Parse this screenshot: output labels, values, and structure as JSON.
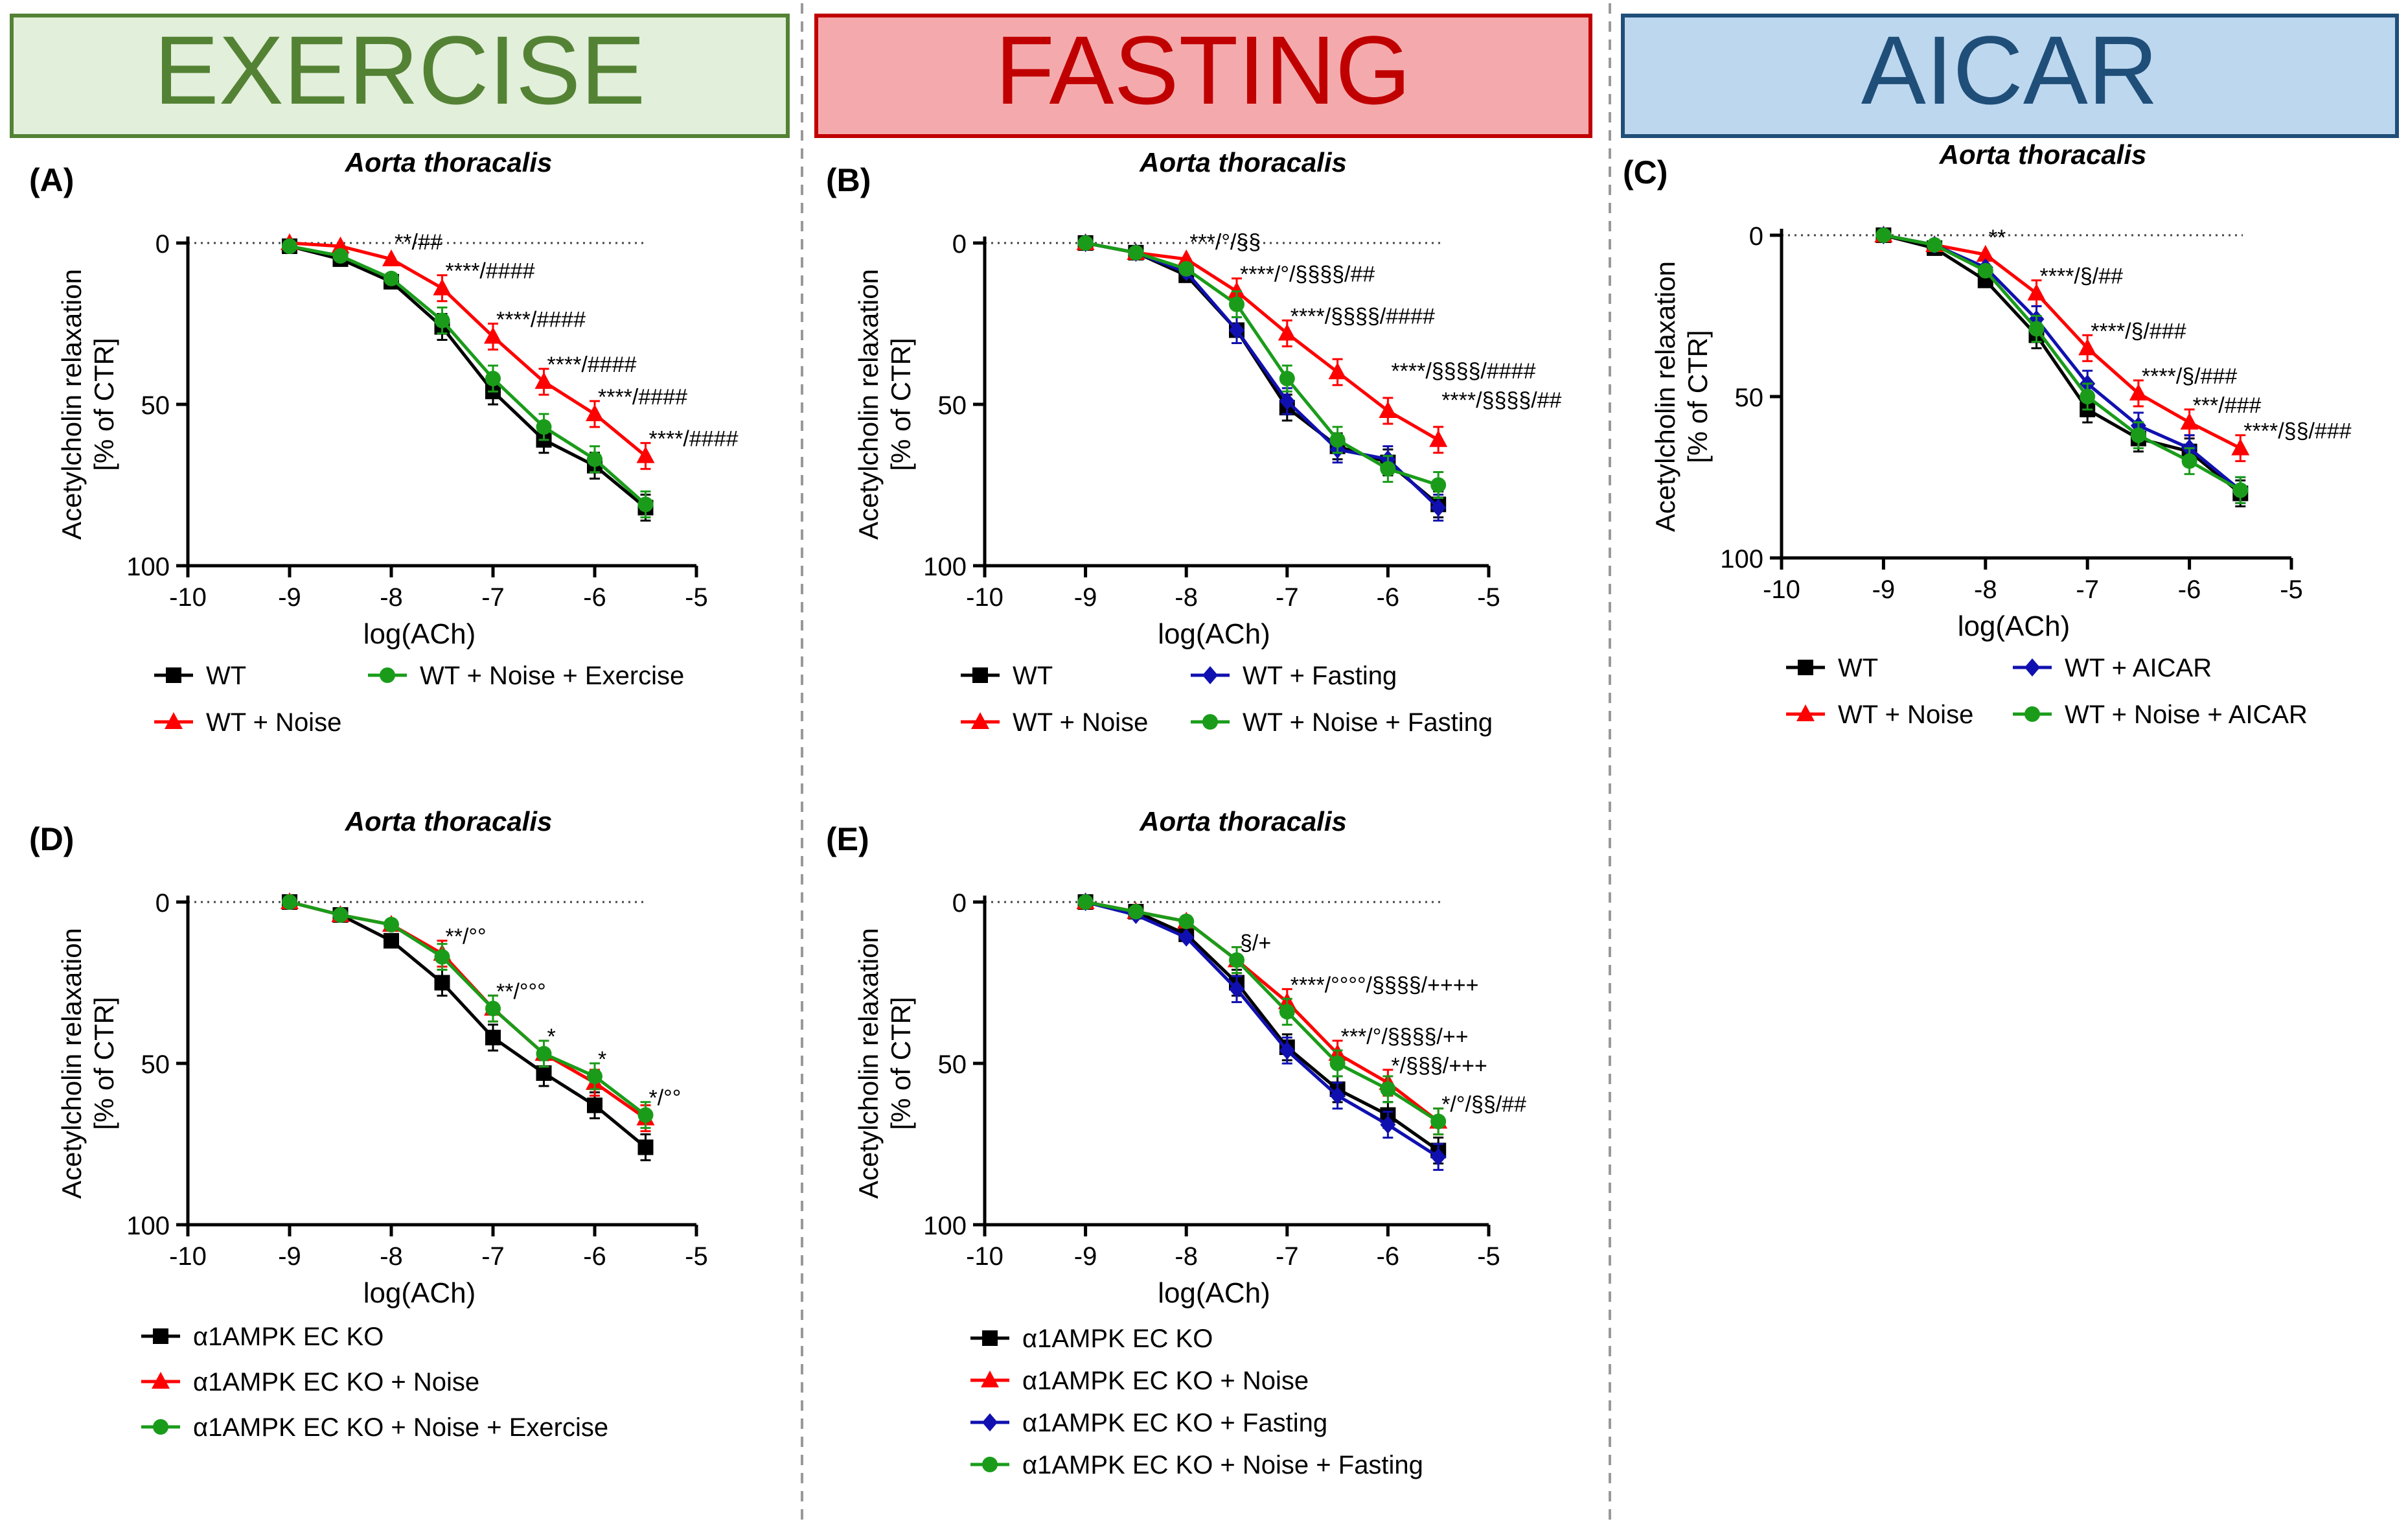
{
  "columns": [
    {
      "title": "EXERCISE",
      "fill": "#e2efda",
      "stroke": "#548235",
      "color": "#548235"
    },
    {
      "title": "FASTING",
      "fill": "#f4aaad",
      "stroke": "#c00000",
      "color": "#c00000"
    },
    {
      "title": "AICAR",
      "fill": "#bdd7ee",
      "stroke": "#1f4e79",
      "color": "#1f4e79"
    }
  ],
  "colors": {
    "black": "#000000",
    "red": "#ff0000",
    "green": "#1a9c1a",
    "blue": "#1010b0",
    "divider": "#999999"
  },
  "chart_data": [
    {
      "panel": "(A)",
      "type": "line",
      "title": "Aorta thoracalis",
      "xlabel": "log(ACh)",
      "ylabel": "Acetylcholin relaxation",
      "ylabel2": "[% of CTR]",
      "xlim": [
        -10,
        -5
      ],
      "ylim": [
        0,
        100
      ],
      "y_inverted": true,
      "xticks": [
        -10,
        -9,
        -8,
        -7,
        -6,
        -5
      ],
      "yticks": [
        0,
        50,
        100
      ],
      "x": [
        -9,
        -8.5,
        -8,
        -7.5,
        -7,
        -6.5,
        -6,
        -5.5
      ],
      "series": [
        {
          "name": "WT",
          "color": "#000000",
          "marker": "square",
          "values": [
            1,
            5,
            12,
            26,
            46,
            61,
            69,
            82
          ]
        },
        {
          "name": "WT + Noise",
          "color": "#ff0000",
          "marker": "triangle",
          "values": [
            0,
            1,
            5,
            14,
            29,
            43,
            53,
            66
          ]
        },
        {
          "name": "WT + Noise + Exercise",
          "color": "#1a9c1a",
          "marker": "circle",
          "values": [
            1,
            4,
            11,
            24,
            42,
            57,
            67,
            81
          ]
        }
      ],
      "annotations": [
        {
          "x": -8,
          "y": 5,
          "text": "**/##"
        },
        {
          "x": -7.5,
          "y": 14,
          "text": "****/####"
        },
        {
          "x": -7,
          "y": 29,
          "text": "****/####"
        },
        {
          "x": -6.5,
          "y": 43,
          "text": "****/####"
        },
        {
          "x": -6,
          "y": 53,
          "text": "****/####"
        },
        {
          "x": -5.5,
          "y": 66,
          "text": "****/####"
        }
      ],
      "legend": [
        [
          "WT",
          "WT + Noise + Exercise"
        ],
        [
          "WT + Noise"
        ]
      ]
    },
    {
      "panel": "(B)",
      "type": "line",
      "title": "Aorta thoracalis",
      "xlabel": "log(ACh)",
      "ylabel": "Acetylcholin relaxation",
      "ylabel2": "[% of CTR]",
      "xlim": [
        -10,
        -5
      ],
      "ylim": [
        0,
        100
      ],
      "y_inverted": true,
      "xticks": [
        -10,
        -9,
        -8,
        -7,
        -6,
        -5
      ],
      "yticks": [
        0,
        50,
        100
      ],
      "x": [
        -9,
        -8.5,
        -8,
        -7.5,
        -7,
        -6.5,
        -6,
        -5.5
      ],
      "series": [
        {
          "name": "WT",
          "color": "#000000",
          "marker": "square",
          "values": [
            0,
            3,
            10,
            27,
            51,
            63,
            68,
            81
          ]
        },
        {
          "name": "WT + Noise",
          "color": "#ff0000",
          "marker": "triangle",
          "values": [
            0,
            3,
            5,
            15,
            28,
            40,
            52,
            61
          ]
        },
        {
          "name": "WT + Fasting",
          "color": "#1010b0",
          "marker": "diamond",
          "values": [
            0,
            3,
            9,
            27,
            49,
            64,
            67,
            82
          ]
        },
        {
          "name": "WT + Noise + Fasting",
          "color": "#1a9c1a",
          "marker": "circle",
          "values": [
            0,
            3,
            8,
            19,
            42,
            61,
            70,
            75
          ]
        }
      ],
      "annotations": [
        {
          "x": -8,
          "y": 5,
          "text": "***/°/§§"
        },
        {
          "x": -7.5,
          "y": 15,
          "text": "****/°/§§§§/##"
        },
        {
          "x": -7,
          "y": 28,
          "text": "****/§§§§/####"
        },
        {
          "x": -6,
          "y": 45,
          "text": "****/§§§§/####"
        },
        {
          "x": -5.5,
          "y": 54,
          "text": "****/§§§§/##"
        }
      ],
      "legend": [
        [
          "WT",
          "WT + Fasting"
        ],
        [
          "WT + Noise",
          "WT + Noise + Fasting"
        ]
      ]
    },
    {
      "panel": "(C)",
      "type": "line",
      "title": "Aorta thoracalis",
      "xlabel": "log(ACh)",
      "ylabel": "Acetylcholin relaxation",
      "ylabel2": "[% of CTR]",
      "xlim": [
        -10,
        -5
      ],
      "ylim": [
        0,
        100
      ],
      "y_inverted": true,
      "xticks": [
        -10,
        -9,
        -8,
        -7,
        -6,
        -5
      ],
      "yticks": [
        0,
        50,
        100
      ],
      "x": [
        -9,
        -8.5,
        -8,
        -7.5,
        -7,
        -6.5,
        -6,
        -5.5
      ],
      "series": [
        {
          "name": "WT",
          "color": "#000000",
          "marker": "square",
          "values": [
            0,
            4,
            14,
            31,
            54,
            63,
            67,
            80
          ]
        },
        {
          "name": "WT + Noise",
          "color": "#ff0000",
          "marker": "triangle",
          "values": [
            0,
            3,
            6,
            18,
            35,
            49,
            58,
            66
          ]
        },
        {
          "name": "WT + AICAR",
          "color": "#1010b0",
          "marker": "diamond",
          "values": [
            0,
            3,
            10,
            26,
            46,
            59,
            66,
            79
          ]
        },
        {
          "name": "WT + Noise + AICAR",
          "color": "#1a9c1a",
          "marker": "circle",
          "values": [
            0,
            3,
            11,
            29,
            50,
            62,
            70,
            79
          ]
        }
      ],
      "annotations": [
        {
          "x": -8,
          "y": 6,
          "text": "**"
        },
        {
          "x": -7.5,
          "y": 18,
          "text": "****/§/##"
        },
        {
          "x": -7,
          "y": 35,
          "text": "****/§/###"
        },
        {
          "x": -6.5,
          "y": 49,
          "text": "****/§/###"
        },
        {
          "x": -6,
          "y": 58,
          "text": "***/###"
        },
        {
          "x": -5.5,
          "y": 66,
          "text": "****/§§/###"
        }
      ],
      "legend": [
        [
          "WT",
          "WT + AICAR"
        ],
        [
          "WT + Noise",
          "WT + Noise + AICAR"
        ]
      ]
    },
    {
      "panel": "(D)",
      "type": "line",
      "title": "Aorta thoracalis",
      "xlabel": "log(ACh)",
      "ylabel": "Acetylcholin relaxation",
      "ylabel2": "[% of CTR]",
      "xlim": [
        -10,
        -5
      ],
      "ylim": [
        0,
        100
      ],
      "y_inverted": true,
      "xticks": [
        -10,
        -9,
        -8,
        -7,
        -6,
        -5
      ],
      "yticks": [
        0,
        50,
        100
      ],
      "x": [
        -9,
        -8.5,
        -8,
        -7.5,
        -7,
        -6.5,
        -6,
        -5.5
      ],
      "series": [
        {
          "name": "α1AMPK EC KO",
          "color": "#000000",
          "marker": "square",
          "values": [
            0,
            4,
            12,
            25,
            42,
            53,
            63,
            76
          ]
        },
        {
          "name": "α1AMPK EC KO + Noise",
          "color": "#ff0000",
          "marker": "triangle",
          "values": [
            0,
            4,
            7,
            16,
            33,
            47,
            56,
            67
          ]
        },
        {
          "name": "α1AMPK EC KO + Noise + Exercise",
          "color": "#1a9c1a",
          "marker": "circle",
          "values": [
            0,
            4,
            7,
            17,
            33,
            47,
            54,
            66
          ]
        }
      ],
      "annotations": [
        {
          "x": -7.5,
          "y": 16,
          "text": "**/°°"
        },
        {
          "x": -7,
          "y": 33,
          "text": "**/°°°"
        },
        {
          "x": -6.5,
          "y": 47,
          "text": "*"
        },
        {
          "x": -6,
          "y": 54,
          "text": "*"
        },
        {
          "x": -5.5,
          "y": 66,
          "text": "*/°°"
        }
      ],
      "legend": [
        [
          "α1AMPK EC KO"
        ],
        [
          "α1AMPK EC KO + Noise"
        ],
        [
          "α1AMPK EC KO + Noise + Exercise"
        ]
      ]
    },
    {
      "panel": "(E)",
      "type": "line",
      "title": "Aorta thoracalis",
      "xlabel": "log(ACh)",
      "ylabel": "Acetylcholin relaxation",
      "ylabel2": "[% of CTR]",
      "xlim": [
        -10,
        -5
      ],
      "ylim": [
        0,
        100
      ],
      "y_inverted": true,
      "xticks": [
        -10,
        -9,
        -8,
        -7,
        -6,
        -5
      ],
      "yticks": [
        0,
        50,
        100
      ],
      "x": [
        -9,
        -8.5,
        -8,
        -7.5,
        -7,
        -6.5,
        -6,
        -5.5
      ],
      "series": [
        {
          "name": "α1AMPK EC KO",
          "color": "#000000",
          "marker": "square",
          "values": [
            0,
            3,
            10,
            25,
            45,
            58,
            66,
            77
          ]
        },
        {
          "name": "α1AMPK EC KO + Noise",
          "color": "#ff0000",
          "marker": "triangle",
          "values": [
            0,
            3,
            6,
            18,
            31,
            47,
            56,
            68
          ]
        },
        {
          "name": "α1AMPK EC KO + Fasting",
          "color": "#1010b0",
          "marker": "diamond",
          "values": [
            0,
            4,
            11,
            27,
            46,
            60,
            69,
            79
          ]
        },
        {
          "name": "α1AMPK EC KO + Noise + Fasting",
          "color": "#1a9c1a",
          "marker": "circle",
          "values": [
            0,
            3,
            6,
            18,
            34,
            50,
            58,
            68
          ]
        }
      ],
      "annotations": [
        {
          "x": -7.5,
          "y": 18,
          "text": "§/+"
        },
        {
          "x": -7,
          "y": 31,
          "text": "****/°°°°/§§§§/++++"
        },
        {
          "x": -6.5,
          "y": 47,
          "text": "***/°/§§§§/++"
        },
        {
          "x": -6,
          "y": 56,
          "text": "*/§§§/+++"
        },
        {
          "x": -5.5,
          "y": 68,
          "text": "*/°/§§/##"
        }
      ],
      "legend": [
        [
          "α1AMPK EC KO"
        ],
        [
          "α1AMPK EC KO + Noise"
        ],
        [
          "α1AMPK EC KO + Fasting"
        ],
        [
          "α1AMPK EC KO + Noise + Fasting"
        ]
      ]
    }
  ]
}
